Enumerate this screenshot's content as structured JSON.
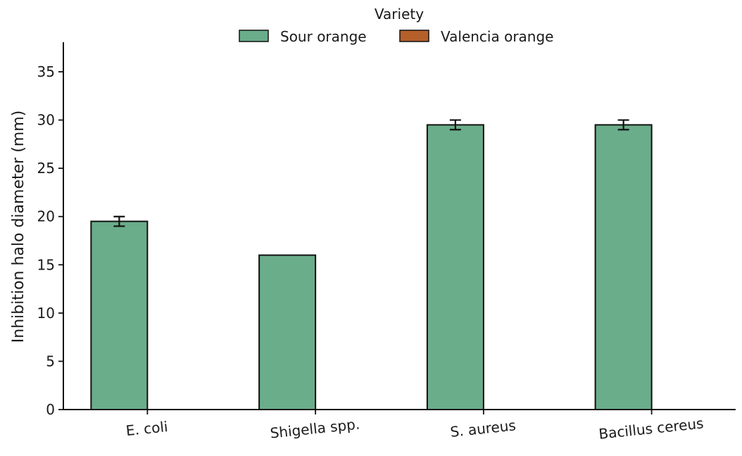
{
  "chart_data": {
    "type": "bar",
    "title": "",
    "xlabel": "",
    "ylabel": "Inhibition halo diameter (mm)",
    "ylim": [
      0,
      38
    ],
    "yticks": [
      0,
      5,
      10,
      15,
      20,
      25,
      30,
      35
    ],
    "categories": [
      "E. coli",
      "Shigella spp.",
      "S. aureus",
      "Bacillus cereus"
    ],
    "legend": {
      "title": "Variety",
      "placement": "top-center"
    },
    "series": [
      {
        "name": "Sour orange",
        "color": "#6aad8a",
        "values": [
          19.5,
          16.0,
          29.5,
          29.5
        ],
        "errors": [
          0.5,
          0.0,
          0.5,
          0.5
        ]
      },
      {
        "name": "Valencia orange",
        "color": "#b5602b",
        "values": [
          0,
          0,
          0,
          0
        ],
        "errors": [
          0,
          0,
          0,
          0
        ]
      }
    ],
    "grid": false
  }
}
